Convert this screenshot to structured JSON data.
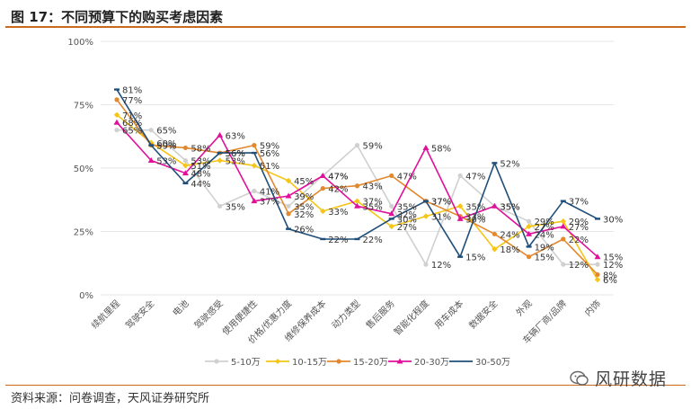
{
  "title": "图 17：不同预算下的购买考虑因素",
  "source": "资料来源：问卷调查，天风证券研究所",
  "watermark": "风研数据",
  "chart_data": {
    "type": "line",
    "title": "图 17：不同预算下的购买考虑因素",
    "categories": [
      "续航里程",
      "驾驶安全",
      "电池",
      "驾驶感受",
      "使用便捷性",
      "价格/优惠力度",
      "维修保养成本",
      "动力类型",
      "售后服务",
      "智能化程度",
      "用车成本",
      "数据安全",
      "外观",
      "车辆厂商/品牌",
      "内饰"
    ],
    "ylim": [
      0,
      100
    ],
    "yticks": [
      "0%",
      "25%",
      "50%",
      "75%",
      "100%"
    ],
    "legend_position": "bottom",
    "series": [
      {
        "name": "5-10万",
        "color": "#d0d0d0",
        "values": [
          65,
          65,
          53,
          35,
          41,
          35,
          47,
          59,
          35,
          12,
          47,
          35,
          29,
          12,
          12
        ]
      },
      {
        "name": "10-15万",
        "color": "#f5c518",
        "values": [
          71,
          60,
          51,
          53,
          51,
          45,
          33,
          37,
          27,
          31,
          35,
          18,
          27,
          29,
          6
        ]
      },
      {
        "name": "15-20万",
        "color": "#e2892f",
        "values": [
          77,
          59,
          58,
          56,
          59,
          32,
          42,
          43,
          47,
          37,
          31,
          24,
          15,
          22,
          8
        ]
      },
      {
        "name": "20-30万",
        "color": "#e0109a",
        "values": [
          68,
          53,
          48,
          63,
          37,
          39,
          47,
          35,
          32,
          58,
          30,
          35,
          24,
          27,
          15
        ]
      },
      {
        "name": "30-50万",
        "color": "#1f4e79",
        "values": [
          81,
          59,
          44,
          56,
          56,
          26,
          22,
          22,
          30,
          37,
          15,
          52,
          19,
          37,
          30
        ]
      }
    ]
  }
}
